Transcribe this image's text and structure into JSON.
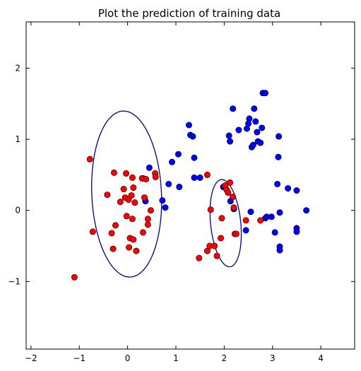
{
  "chart_data": {
    "type": "scatter",
    "title": "Plot the prediction of training data",
    "xlabel": "",
    "ylabel": "",
    "xlim": [
      -2.1,
      4.7
    ],
    "ylim": [
      -1.95,
      2.65
    ],
    "x_ticks": [
      -2,
      -1,
      0,
      1,
      2,
      3,
      4
    ],
    "y_ticks": [
      -1,
      0,
      1,
      2
    ],
    "x_tick_labels": [
      "−2",
      "−1",
      "0",
      "1",
      "2",
      "3",
      "4"
    ],
    "y_tick_labels": [
      "−1",
      "0",
      "1",
      "2"
    ],
    "grid": false,
    "legend": "none",
    "series": [
      {
        "color": "#0000ff",
        "points": [
          [
            0.32,
            0.45
          ],
          [
            0.45,
            0.6
          ],
          [
            0.37,
            0.13
          ],
          [
            0.72,
            0.14
          ],
          [
            0.78,
            0.04
          ],
          [
            0.85,
            0.37
          ],
          [
            0.92,
            0.68
          ],
          [
            1.05,
            0.79
          ],
          [
            1.07,
            0.33
          ],
          [
            1.27,
            1.2
          ],
          [
            1.3,
            1.06
          ],
          [
            1.35,
            1.04
          ],
          [
            1.38,
            0.74
          ],
          [
            1.38,
            0.46
          ],
          [
            1.5,
            0.46
          ],
          [
            1.98,
            0.33
          ],
          [
            2.02,
            0.33
          ],
          [
            2.1,
            1.05
          ],
          [
            2.12,
            0.97
          ],
          [
            2.13,
            0.13
          ],
          [
            2.18,
            1.43
          ],
          [
            2.2,
            0.02
          ],
          [
            2.3,
            1.13
          ],
          [
            2.45,
            -0.28
          ],
          [
            2.47,
            1.15
          ],
          [
            2.5,
            1.22
          ],
          [
            2.52,
            1.29
          ],
          [
            2.55,
            -0.02
          ],
          [
            2.57,
            0.89
          ],
          [
            2.6,
            0.92
          ],
          [
            2.62,
            1.43
          ],
          [
            2.65,
            1.25
          ],
          [
            2.68,
            1.1
          ],
          [
            2.7,
            0.97
          ],
          [
            2.75,
            0.95
          ],
          [
            2.78,
            1.16
          ],
          [
            2.8,
            1.65
          ],
          [
            2.85,
            1.65
          ],
          [
            2.85,
            -0.11
          ],
          [
            2.88,
            -0.09
          ],
          [
            2.98,
            -0.09
          ],
          [
            3.05,
            -0.31
          ],
          [
            3.1,
            0.37
          ],
          [
            3.12,
            0.75
          ],
          [
            3.13,
            1.04
          ],
          [
            3.15,
            -0.03
          ],
          [
            3.15,
            -0.51
          ],
          [
            3.15,
            -0.56
          ],
          [
            3.32,
            0.31
          ],
          [
            3.5,
            -0.25
          ],
          [
            3.5,
            -0.3
          ],
          [
            3.5,
            0.28
          ],
          [
            3.7,
            0.0
          ]
        ]
      },
      {
        "color": "#ff0000",
        "points": [
          [
            -1.1,
            -0.94
          ],
          [
            -0.78,
            0.72
          ],
          [
            -0.72,
            -0.3
          ],
          [
            -0.42,
            0.22
          ],
          [
            -0.33,
            -0.32
          ],
          [
            -0.3,
            -0.54
          ],
          [
            -0.28,
            0.53
          ],
          [
            -0.25,
            -0.21
          ],
          [
            -0.15,
            0.12
          ],
          [
            -0.08,
            0.3
          ],
          [
            -0.05,
            0.18
          ],
          [
            -0.03,
            0.52
          ],
          [
            -0.02,
            -0.08
          ],
          [
            0.02,
            0.15
          ],
          [
            0.03,
            -0.52
          ],
          [
            0.05,
            -0.39
          ],
          [
            0.08,
            0.21
          ],
          [
            0.1,
            0.46
          ],
          [
            0.12,
            0.32
          ],
          [
            0.1,
            -0.12
          ],
          [
            0.12,
            -0.41
          ],
          [
            0.15,
            0.11
          ],
          [
            0.18,
            -0.57
          ],
          [
            0.3,
            0.45
          ],
          [
            0.32,
            -0.31
          ],
          [
            0.35,
            0.18
          ],
          [
            0.38,
            0.44
          ],
          [
            0.42,
            -0.2
          ],
          [
            0.42,
            -0.12
          ],
          [
            0.48,
            0.0
          ],
          [
            0.57,
            0.52
          ],
          [
            0.58,
            0.47
          ],
          [
            1.48,
            -0.67
          ],
          [
            1.65,
            0.5
          ],
          [
            1.65,
            -0.57
          ],
          [
            1.7,
            -0.5
          ],
          [
            1.72,
            0.01
          ],
          [
            1.8,
            -0.5
          ],
          [
            1.85,
            -0.64
          ],
          [
            1.93,
            -0.39
          ],
          [
            1.95,
            -0.11
          ],
          [
            2.02,
            0.35
          ],
          [
            2.05,
            0.29
          ],
          [
            2.08,
            0.25
          ],
          [
            2.12,
            0.39
          ],
          [
            2.18,
            0.19
          ],
          [
            2.2,
            0.04
          ],
          [
            2.22,
            -0.33
          ],
          [
            2.25,
            -0.33
          ],
          [
            2.45,
            -0.14
          ],
          [
            2.75,
            -0.14
          ]
        ]
      }
    ],
    "ellipses": [
      {
        "color": "#000080",
        "center": [
          -0.02,
          0.23
        ],
        "semi_major": 1.17,
        "semi_minor": 0.72,
        "angle_deg": 95
      },
      {
        "color": "#000080",
        "center": [
          2.03,
          -0.18
        ],
        "semi_major": 0.62,
        "semi_minor": 0.31,
        "angle_deg": 100
      }
    ]
  }
}
